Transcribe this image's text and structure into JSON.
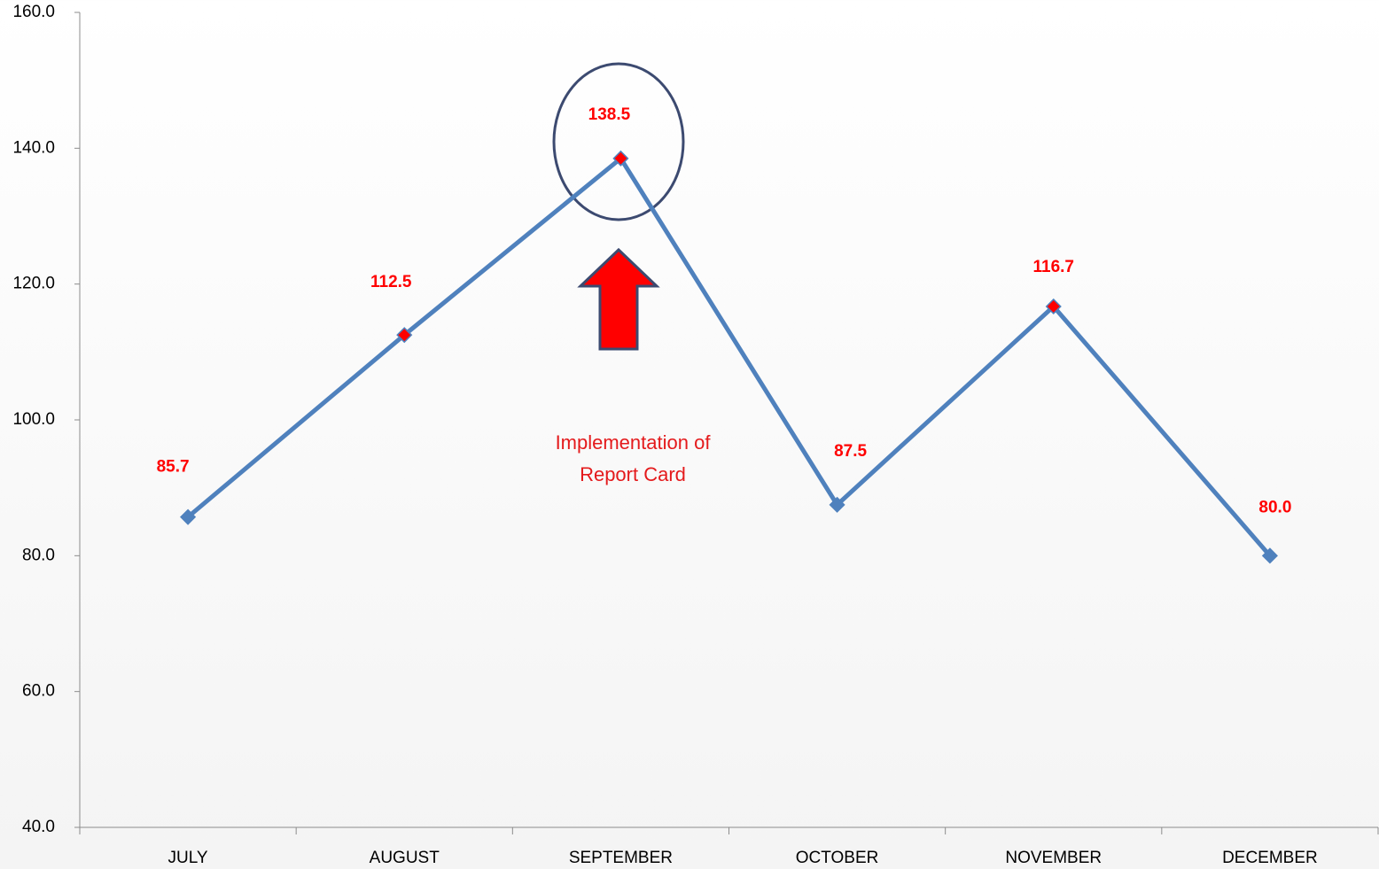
{
  "chart_data": {
    "type": "line",
    "categories": [
      "JULY",
      "AUGUST",
      "SEPTEMBER",
      "OCTOBER",
      "NOVEMBER",
      "DECEMBER"
    ],
    "series": [
      {
        "name": null,
        "color": "#4f81bd",
        "values": [
          85.7,
          112.5,
          138.5,
          87.5,
          116.7,
          80.0
        ],
        "value_labels": [
          "85.7",
          "112.5",
          "138.5",
          "87.5",
          "116.7",
          "80.0"
        ],
        "marker_colors": [
          "#4f81bd",
          "#ff0000",
          "#ff0000",
          "#4f81bd",
          "#ff0000",
          "#4f81bd"
        ]
      }
    ],
    "value_label_color": "#ff0000",
    "ylim": [
      40,
      160
    ],
    "yticks": [
      {
        "value": 40,
        "label": "40.0"
      },
      {
        "value": 60,
        "label": "60.0"
      },
      {
        "value": 80,
        "label": "80.0"
      },
      {
        "value": 100,
        "label": "100.0"
      },
      {
        "value": 120,
        "label": "120.0"
      },
      {
        "value": 140,
        "label": "140.0"
      },
      {
        "value": 160,
        "label": "160.0"
      }
    ],
    "grid": false,
    "annotation": [
      "Implementation of",
      "Report Card"
    ]
  }
}
